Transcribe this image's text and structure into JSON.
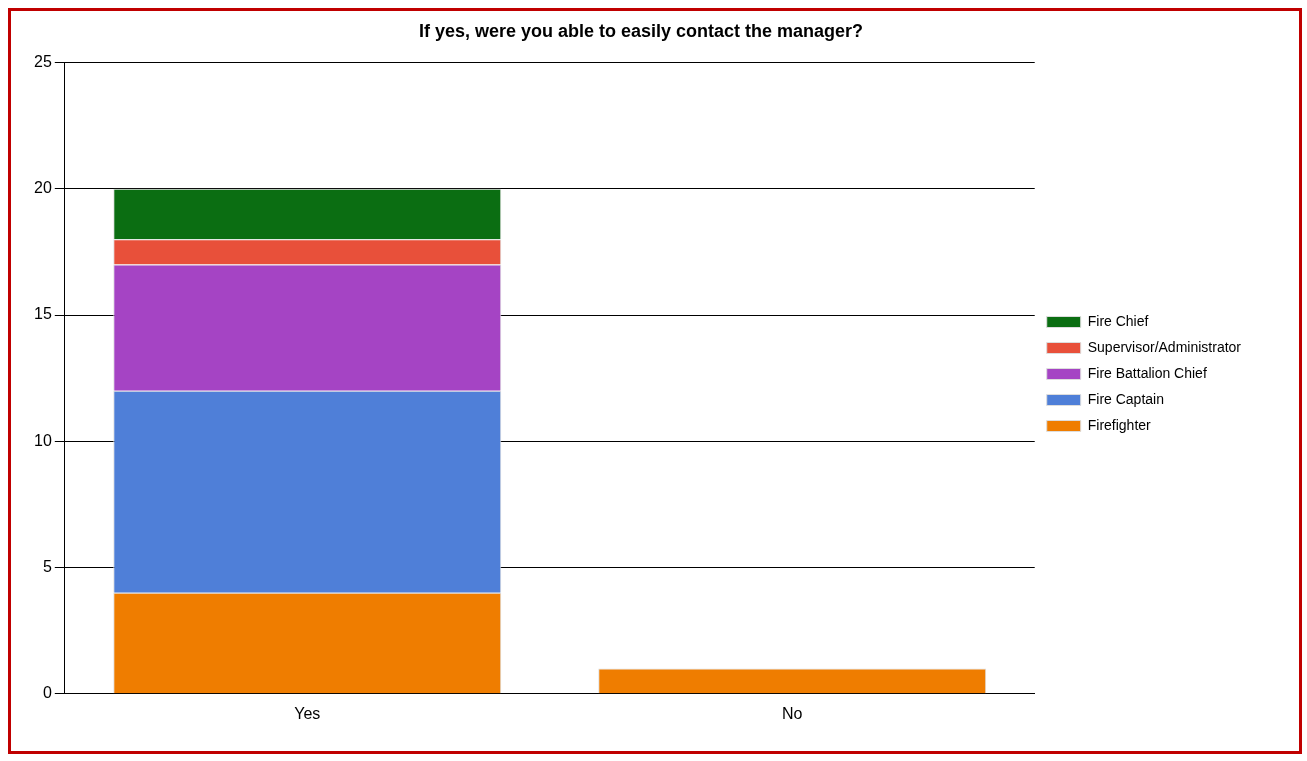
{
  "chart_data": {
    "type": "bar",
    "title": "If yes, were you able to easily contact the manager?",
    "categories": [
      "Yes",
      "No"
    ],
    "stacked": true,
    "series": [
      {
        "name": "Firefighter",
        "color": "#ef7d00",
        "values": [
          4,
          1
        ]
      },
      {
        "name": "Fire Captain",
        "color": "#4f7fd8",
        "values": [
          8,
          0
        ]
      },
      {
        "name": "Fire Battalion Chief",
        "color": "#a544c4",
        "values": [
          5,
          0
        ]
      },
      {
        "name": "Supervisor/Administrator",
        "color": "#e8503a",
        "values": [
          1,
          0
        ]
      },
      {
        "name": "Fire Chief",
        "color": "#0b6e12",
        "values": [
          2,
          0
        ]
      }
    ],
    "ylim": [
      0,
      25
    ],
    "yticks": [
      0,
      5,
      10,
      15,
      20,
      25
    ],
    "grid": "y",
    "legend": "right"
  }
}
